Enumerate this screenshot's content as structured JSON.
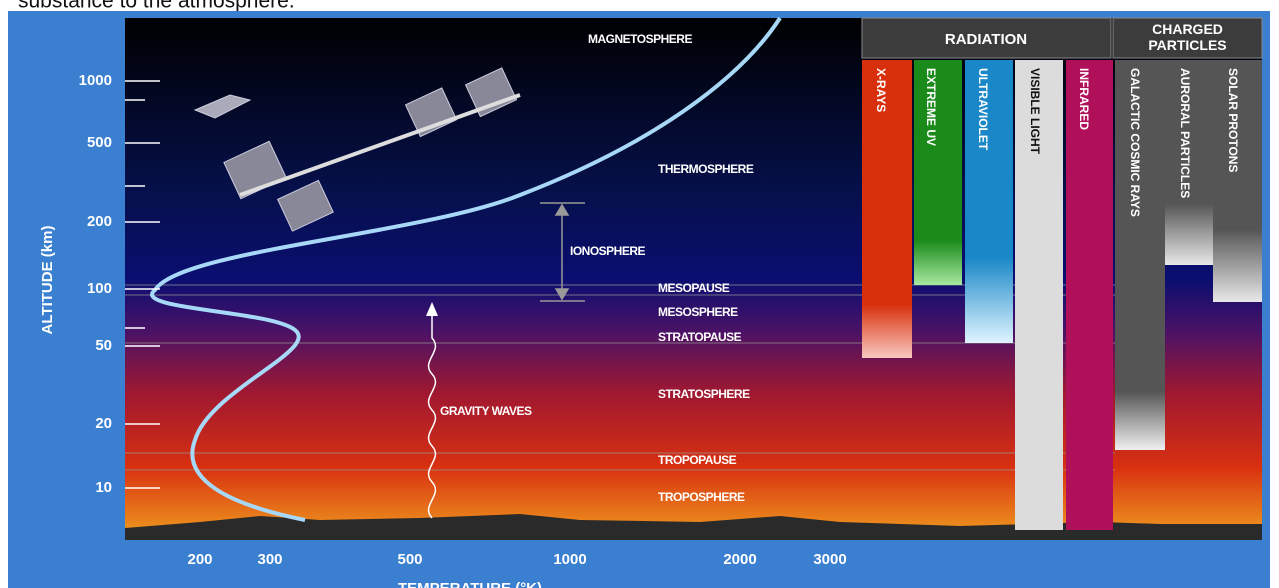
{
  "caption": "substance to the atmosphere.",
  "y_axis": {
    "label": "ALTITUDE (km)",
    "ticks": [
      "1000",
      "500",
      "200",
      "100",
      "50",
      "20",
      "10"
    ]
  },
  "x_axis": {
    "label": "TEMPERATURE (°K)",
    "ticks": [
      "200",
      "300",
      "500",
      "1000",
      "2000",
      "3000"
    ]
  },
  "layers": [
    "MAGNETOSPHERE",
    "THERMOSPHERE",
    "IONOSPHERE",
    "MESOPAUSE",
    "MESOSPHERE",
    "STRATOPAUSE",
    "STRATOSPHERE",
    "TROPOPAUSE",
    "TROPOSPHERE"
  ],
  "gravity_waves": "GRAVITY WAVES",
  "radiation": {
    "title": "RADIATION",
    "bands": [
      "X-RAYS",
      "EXTREME UV",
      "ULTRAVIOLET",
      "VISIBLE LIGHT",
      "INFRARED"
    ]
  },
  "charged_particles": {
    "title": "CHARGED PARTICLES",
    "bands": [
      "GALACTIC COSMIC RAYS",
      "AURORAL PARTICLES",
      "SOLAR PROTONS"
    ]
  }
}
